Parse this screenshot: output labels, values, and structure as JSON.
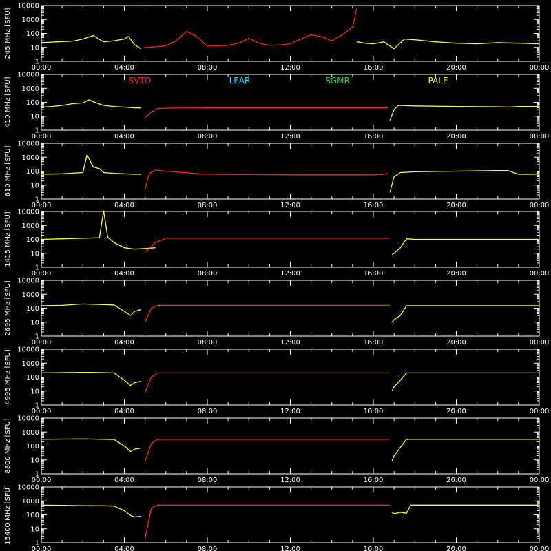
{
  "chart_data": {
    "type": "line",
    "y_scale": "log",
    "ylim": [
      1,
      10000
    ],
    "y_ticks": [
      1,
      10,
      100,
      1000,
      10000
    ],
    "y_tick_labels": [
      "1",
      "10",
      "100",
      "1000",
      "10000"
    ],
    "xlim": [
      "00:00",
      "24:00"
    ],
    "x_tick_labels": [
      "00:00",
      "04:00",
      "08:00",
      "12:00",
      "16:00",
      "20:00",
      "00:00"
    ],
    "x_tick_hours": [
      0,
      4,
      8,
      12,
      16,
      20,
      24
    ],
    "legend": [
      {
        "name": "SVTO",
        "color": "#ff2020"
      },
      {
        "name": "LEAR",
        "color": "#20d8ff"
      },
      {
        "name": "SGMR",
        "color": "#20e020"
      },
      {
        "name": "PALE",
        "color": "#ffff20"
      }
    ],
    "colors": {
      "SVTO": "#ff2020",
      "PALE": "#ffff20",
      "axes": "#ffffff",
      "background": "#000000"
    },
    "panels": [
      {
        "ylabel": "245 MHz [SFU]",
        "series": [
          {
            "name": "PALE",
            "x": [
              0,
              0.5,
              1,
              1.5,
              2,
              2.5,
              3,
              3.5,
              4,
              4.2,
              4.5,
              4.8
            ],
            "y": [
              22,
              24,
              26,
              28,
              40,
              70,
              25,
              30,
              40,
              60,
              15,
              8
            ]
          },
          {
            "name": "SVTO",
            "x": [
              5.0,
              5.5,
              6.0,
              6.5,
              7.0,
              7.5,
              8.0,
              8.5,
              9.0,
              9.5,
              10.0,
              10.5,
              11.0,
              11.5,
              12.0,
              12.5,
              13.0,
              13.5,
              14.0,
              14.5,
              15.0,
              15.2
            ],
            "y": [
              10,
              11,
              13,
              30,
              140,
              60,
              12,
              13,
              14,
              20,
              45,
              20,
              14,
              15,
              18,
              40,
              80,
              60,
              30,
              80,
              300,
              6000
            ]
          },
          {
            "name": "PALE",
            "x": [
              15.2,
              15.6,
              16.0,
              16.5,
              17.0,
              17.5,
              18.0,
              19.0,
              20.0,
              21.0,
              22.0,
              23.0,
              24.0
            ],
            "y": [
              25,
              20,
              18,
              25,
              8,
              40,
              35,
              25,
              20,
              18,
              22,
              20,
              18
            ]
          }
        ]
      },
      {
        "ylabel": "410 MHz [SFU]",
        "series": [
          {
            "name": "PALE",
            "x": [
              0,
              0.5,
              1,
              1.5,
              2,
              2.3,
              2.5,
              3,
              3.5,
              4,
              4.5,
              4.8
            ],
            "y": [
              45,
              50,
              60,
              80,
              90,
              150,
              110,
              60,
              50,
              45,
              40,
              40
            ]
          },
          {
            "name": "SVTO",
            "x": [
              5.0,
              5.3,
              5.6,
              6,
              8,
              10,
              12,
              14,
              15,
              16,
              16.5,
              16.7
            ],
            "y": [
              8,
              20,
              35,
              38,
              40,
              40,
              40,
              40,
              40,
              40,
              40,
              40
            ]
          },
          {
            "name": "PALE",
            "x": [
              16.8,
              17.0,
              17.2,
              18,
              20,
              22,
              22.5,
              23,
              24
            ],
            "y": [
              5,
              30,
              60,
              55,
              50,
              48,
              45,
              50,
              50
            ]
          }
        ]
      },
      {
        "ylabel": "610 MHz [SFU]",
        "series": [
          {
            "name": "PALE",
            "x": [
              0,
              1,
              2,
              2.2,
              2.5,
              2.8,
              3,
              3.5,
              4,
              4.5,
              4.8
            ],
            "y": [
              60,
              65,
              80,
              1500,
              200,
              150,
              80,
              70,
              65,
              60,
              60
            ]
          },
          {
            "name": "SVTO",
            "x": [
              5.0,
              5.2,
              5.5,
              6,
              8,
              10,
              12,
              14,
              15,
              16,
              16.5,
              16.7
            ],
            "y": [
              5,
              70,
              120,
              100,
              60,
              58,
              55,
              55,
              55,
              55,
              60,
              70
            ]
          },
          {
            "name": "PALE",
            "x": [
              16.8,
              17.0,
              17.3,
              18,
              20,
              22,
              22.5,
              23,
              24
            ],
            "y": [
              3,
              40,
              80,
              90,
              100,
              110,
              110,
              60,
              60
            ]
          }
        ]
      },
      {
        "ylabel": "1415 MHz [SFU]",
        "series": [
          {
            "name": "PALE",
            "x": [
              0,
              1,
              2,
              2.8,
              3.0,
              3.2,
              3.5,
              4,
              4.5,
              5,
              5.5
            ],
            "y": [
              100,
              110,
              120,
              130,
              20000,
              140,
              60,
              25,
              20,
              22,
              25
            ]
          },
          {
            "name": "SVTO",
            "x": [
              5.0,
              5.5,
              6,
              8,
              10,
              12,
              14,
              15,
              16,
              16.5,
              16.8
            ],
            "y": [
              12,
              60,
              120,
              120,
              120,
              120,
              120,
              120,
              120,
              120,
              120
            ]
          },
          {
            "name": "PALE",
            "x": [
              16.9,
              17.0,
              17.3,
              17.6,
              18,
              20,
              22,
              22.5,
              23,
              24
            ],
            "y": [
              8,
              10,
              25,
              110,
              100,
              100,
              100,
              100,
              100,
              100
            ]
          }
        ]
      },
      {
        "ylabel": "2695 MHz [SFU]",
        "series": [
          {
            "name": "PALE",
            "x": [
              0,
              1,
              2,
              3,
              3.5,
              4,
              4.3,
              4.5,
              4.8
            ],
            "y": [
              150,
              160,
              200,
              180,
              170,
              60,
              30,
              60,
              80
            ]
          },
          {
            "name": "SVTO",
            "x": [
              5.0,
              5.3,
              5.6,
              6,
              8,
              10,
              12,
              14,
              15,
              16,
              16.5,
              16.8
            ],
            "y": [
              10,
              100,
              160,
              160,
              160,
              160,
              160,
              160,
              160,
              160,
              160,
              160
            ]
          },
          {
            "name": "PALE",
            "x": [
              16.9,
              17.0,
              17.3,
              17.6,
              18,
              20,
              22,
              22.5,
              23,
              24
            ],
            "y": [
              10,
              15,
              30,
              150,
              150,
              150,
              150,
              150,
              150,
              150
            ]
          }
        ]
      },
      {
        "ylabel": "4995 MHz [SFU]",
        "series": [
          {
            "name": "PALE",
            "x": [
              0,
              1,
              2,
              3,
              3.5,
              4,
              4.3,
              4.5,
              4.8
            ],
            "y": [
              200,
              210,
              220,
              210,
              200,
              60,
              25,
              40,
              50
            ]
          },
          {
            "name": "SVTO",
            "x": [
              5.0,
              5.3,
              5.6,
              6,
              8,
              10,
              12,
              14,
              15,
              16,
              16.5,
              16.8
            ],
            "y": [
              8,
              100,
              200,
              200,
              200,
              200,
              200,
              200,
              200,
              200,
              200,
              200
            ]
          },
          {
            "name": "PALE",
            "x": [
              16.9,
              17.0,
              17.3,
              17.6,
              18,
              20,
              22,
              22.5,
              23,
              24
            ],
            "y": [
              10,
              20,
              60,
              200,
              200,
              200,
              200,
              200,
              200,
              200
            ]
          }
        ]
      },
      {
        "ylabel": "8800 MHz [SFU]",
        "series": [
          {
            "name": "PALE",
            "x": [
              0,
              1,
              2,
              3,
              3.5,
              4,
              4.3,
              4.5,
              4.8
            ],
            "y": [
              300,
              310,
              320,
              300,
              290,
              100,
              40,
              60,
              70
            ]
          },
          {
            "name": "SVTO",
            "x": [
              5.0,
              5.3,
              5.6,
              6,
              8,
              10,
              12,
              14,
              15,
              16,
              16.5,
              16.8
            ],
            "y": [
              8,
              150,
              300,
              300,
              300,
              300,
              300,
              300,
              300,
              300,
              300,
              300
            ]
          },
          {
            "name": "PALE",
            "x": [
              16.9,
              17.0,
              17.3,
              17.6,
              18,
              20,
              22,
              22.5,
              23,
              24
            ],
            "y": [
              8,
              20,
              80,
              300,
              300,
              300,
              300,
              300,
              300,
              300
            ]
          }
        ]
      },
      {
        "ylabel": "15400 MHz [SFU]",
        "series": [
          {
            "name": "PALE",
            "x": [
              0,
              1,
              2,
              3,
              3.5,
              4,
              4.3,
              4.5,
              4.8
            ],
            "y": [
              500,
              480,
              460,
              450,
              430,
              200,
              90,
              70,
              80
            ]
          },
          {
            "name": "SVTO",
            "x": [
              5.0,
              5.3,
              5.6,
              6,
              8,
              10,
              12,
              14,
              15,
              16,
              16.5,
              16.8
            ],
            "y": [
              2,
              300,
              500,
              500,
              500,
              500,
              500,
              500,
              500,
              500,
              500,
              500
            ]
          },
          {
            "name": "PALE",
            "x": [
              16.9,
              17.0,
              17.3,
              17.6,
              17.8,
              18,
              20,
              22,
              22.5,
              23,
              24
            ],
            "y": [
              150,
              120,
              150,
              130,
              500,
              500,
              500,
              500,
              500,
              500,
              500
            ]
          }
        ]
      }
    ]
  }
}
